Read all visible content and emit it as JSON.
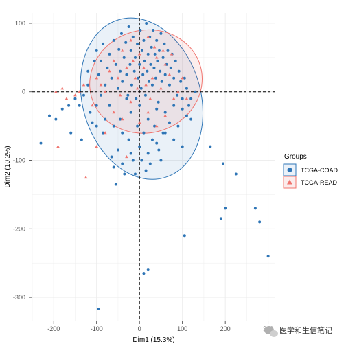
{
  "chart_data": {
    "type": "scatter",
    "xlabel": "Dim1 (15.3%)",
    "ylabel": "Dim2 (10.2%)",
    "xlim": [
      -250,
      315
    ],
    "ylim": [
      -335,
      115
    ],
    "x_ticks": [
      -200,
      -100,
      0,
      100,
      200,
      300
    ],
    "y_ticks": [
      100,
      0,
      -100,
      -200,
      -300
    ],
    "x_tick_labels": [
      "-200",
      "-100",
      "0",
      "100",
      "200",
      "300"
    ],
    "y_tick_labels": [
      "100",
      "0",
      "-100",
      "-200",
      "-300"
    ],
    "reference_lines": {
      "x": 0,
      "y": 0,
      "style": "dashed"
    },
    "grid": true,
    "legend": {
      "title": "Groups",
      "position": "right"
    },
    "colors": {
      "TCGA-COAD": "#2E75B6",
      "TCGA-READ": "#F0746E"
    },
    "series": [
      {
        "name": "TCGA-COAD",
        "marker": "circle",
        "ellipse": {
          "center": [
            5,
            -10
          ],
          "rx": 138,
          "ry": 120,
          "angle_deg": -16
        },
        "points": [
          [
            -230,
            -75
          ],
          [
            -210,
            -35
          ],
          [
            -195,
            -40
          ],
          [
            -180,
            -25
          ],
          [
            -165,
            -20
          ],
          [
            -160,
            -60
          ],
          [
            -150,
            -10
          ],
          [
            -140,
            -20
          ],
          [
            -135,
            -70
          ],
          [
            -130,
            -5
          ],
          [
            -120,
            10
          ],
          [
            -115,
            -30
          ],
          [
            -110,
            -45
          ],
          [
            -100,
            -20
          ],
          [
            -90,
            -5
          ],
          [
            -85,
            -60
          ],
          [
            -70,
            -20
          ],
          [
            -65,
            -95
          ],
          [
            -60,
            -110
          ],
          [
            -55,
            -135
          ],
          [
            -50,
            -85
          ],
          [
            -45,
            -40
          ],
          [
            -40,
            -105
          ],
          [
            -35,
            -120
          ],
          [
            -30,
            -10
          ],
          [
            -25,
            -70
          ],
          [
            -20,
            -90
          ],
          [
            -15,
            -100
          ],
          [
            -10,
            -120
          ],
          [
            -5,
            -50
          ],
          [
            0,
            -80
          ],
          [
            5,
            -100
          ],
          [
            10,
            -60
          ],
          [
            15,
            -115
          ],
          [
            20,
            -90
          ],
          [
            25,
            -105
          ],
          [
            30,
            -70
          ],
          [
            35,
            -50
          ],
          [
            40,
            -75
          ],
          [
            45,
            -85
          ],
          [
            50,
            -100
          ],
          [
            55,
            -60
          ],
          [
            60,
            -30
          ],
          [
            70,
            -45
          ],
          [
            80,
            -20
          ],
          [
            90,
            -50
          ],
          [
            100,
            -25
          ],
          [
            110,
            -35
          ],
          [
            120,
            -10
          ],
          [
            130,
            0
          ],
          [
            165,
            -80
          ],
          [
            195,
            -105
          ],
          [
            225,
            -120
          ],
          [
            190,
            -185
          ],
          [
            200,
            -170
          ],
          [
            270,
            -170
          ],
          [
            280,
            -190
          ],
          [
            300,
            -240
          ],
          [
            105,
            -210
          ],
          [
            20,
            -260
          ],
          [
            10,
            -265
          ],
          [
            -95,
            -317
          ],
          [
            -120,
            30
          ],
          [
            -105,
            45
          ],
          [
            -100,
            60
          ],
          [
            -95,
            25
          ],
          [
            -90,
            45
          ],
          [
            -85,
            70
          ],
          [
            -80,
            10
          ],
          [
            -75,
            35
          ],
          [
            -70,
            55
          ],
          [
            -65,
            20
          ],
          [
            -60,
            75
          ],
          [
            -55,
            40
          ],
          [
            -50,
            5
          ],
          [
            -48,
            62
          ],
          [
            -45,
            30
          ],
          [
            -42,
            85
          ],
          [
            -40,
            15
          ],
          [
            -36,
            50
          ],
          [
            -32,
            72
          ],
          [
            -30,
            25
          ],
          [
            -27,
            -5
          ],
          [
            -25,
            95
          ],
          [
            -22,
            40
          ],
          [
            -20,
            60
          ],
          [
            -18,
            10
          ],
          [
            -15,
            80
          ],
          [
            -12,
            30
          ],
          [
            -10,
            50
          ],
          [
            -8,
            -10
          ],
          [
            -5,
            70
          ],
          [
            -3,
            20
          ],
          [
            0,
            40
          ],
          [
            2,
            90
          ],
          [
            4,
            5
          ],
          [
            6,
            60
          ],
          [
            8,
            25
          ],
          [
            10,
            75
          ],
          [
            12,
            45
          ],
          [
            14,
            -5
          ],
          [
            16,
            100
          ],
          [
            18,
            30
          ],
          [
            20,
            55
          ],
          [
            22,
            15
          ],
          [
            24,
            80
          ],
          [
            26,
            40
          ],
          [
            28,
            65
          ],
          [
            30,
            10
          ],
          [
            32,
            90
          ],
          [
            34,
            35
          ],
          [
            36,
            55
          ],
          [
            38,
            20
          ],
          [
            40,
            75
          ],
          [
            42,
            45
          ],
          [
            44,
            -15
          ],
          [
            46,
            60
          ],
          [
            48,
            30
          ],
          [
            50,
            85
          ],
          [
            52,
            15
          ],
          [
            55,
            50
          ],
          [
            58,
            70
          ],
          [
            60,
            25
          ],
          [
            63,
            40
          ],
          [
            66,
            60
          ],
          [
            70,
            10
          ],
          [
            73,
            35
          ],
          [
            76,
            55
          ],
          [
            80,
            20
          ],
          [
            84,
            45
          ],
          [
            88,
            -5
          ],
          [
            92,
            30
          ],
          [
            96,
            15
          ],
          [
            100,
            -10
          ],
          [
            105,
            20
          ],
          [
            110,
            5
          ],
          [
            115,
            -20
          ],
          [
            120,
            -40
          ],
          [
            -60,
            -50
          ],
          [
            -40,
            -60
          ],
          [
            -20,
            -30
          ],
          [
            0,
            -20
          ],
          [
            20,
            -40
          ],
          [
            40,
            -25
          ],
          [
            60,
            -60
          ],
          [
            80,
            -70
          ],
          [
            100,
            -80
          ],
          [
            -80,
            -40
          ],
          [
            -100,
            -50
          ]
        ]
      },
      {
        "name": "TCGA-READ",
        "marker": "triangle",
        "ellipse": {
          "center": [
            15,
            15
          ],
          "rx": 132,
          "ry": 75,
          "angle_deg": -16
        },
        "points": [
          [
            -195,
            0
          ],
          [
            -180,
            5
          ],
          [
            -170,
            -10
          ],
          [
            -150,
            -5
          ],
          [
            -140,
            0
          ],
          [
            -130,
            10
          ],
          [
            -190,
            -80
          ],
          [
            -125,
            -125
          ],
          [
            -110,
            -20
          ],
          [
            -100,
            20
          ],
          [
            -90,
            10
          ],
          [
            -80,
            0
          ],
          [
            -70,
            30
          ],
          [
            -60,
            45
          ],
          [
            -50,
            20
          ],
          [
            -40,
            60
          ],
          [
            -30,
            35
          ],
          [
            -20,
            75
          ],
          [
            -10,
            20
          ],
          [
            0,
            55
          ],
          [
            10,
            35
          ],
          [
            20,
            80
          ],
          [
            30,
            20
          ],
          [
            40,
            50
          ],
          [
            50,
            5
          ],
          [
            60,
            40
          ],
          [
            70,
            25
          ],
          [
            80,
            -10
          ],
          [
            90,
            0
          ],
          [
            100,
            20
          ],
          [
            110,
            -10
          ],
          [
            -60,
            -30
          ],
          [
            -40,
            -40
          ],
          [
            -20,
            -15
          ],
          [
            0,
            -45
          ],
          [
            20,
            -30
          ],
          [
            40,
            -50
          ],
          [
            60,
            -35
          ],
          [
            -80,
            -60
          ],
          [
            -30,
            -95
          ],
          [
            -100,
            -80
          ],
          [
            15,
            10
          ],
          [
            -5,
            5
          ],
          [
            35,
            65
          ],
          [
            -45,
            -5
          ],
          [
            25,
            -10
          ],
          [
            55,
            60
          ],
          [
            -15,
            45
          ],
          [
            75,
            55
          ]
        ]
      }
    ]
  },
  "watermark": {
    "text": "医学和生信笔记"
  }
}
